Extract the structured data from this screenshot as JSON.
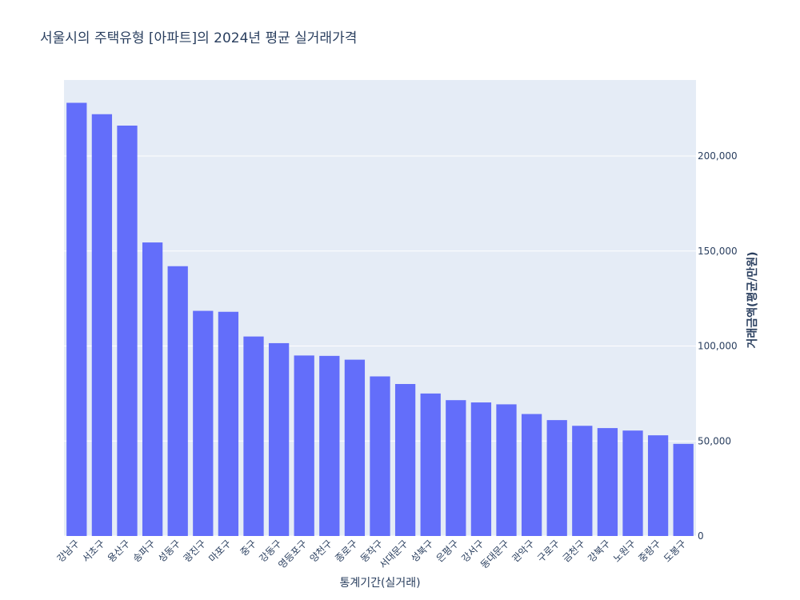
{
  "chart_data": {
    "type": "bar",
    "title": "서울시의 주택유형 [아파트]의 2024년 평균 실거래가격",
    "xlabel": "통계기간(실거래)",
    "ylabel": "거래금액(평균/만원)",
    "y_axis_side": "right",
    "ylim": [
      0,
      240000
    ],
    "yticks": [
      0,
      50000,
      100000,
      150000,
      200000
    ],
    "ytick_labels": [
      "0",
      "50,000",
      "100,000",
      "150,000",
      "200,000"
    ],
    "grid": true,
    "bar_color": "#636efa",
    "plot_bg": "#e5ecf6",
    "categories": [
      "강남구",
      "서초구",
      "용산구",
      "송파구",
      "성동구",
      "광진구",
      "마포구",
      "중구",
      "강동구",
      "영등포구",
      "양천구",
      "종로구",
      "동작구",
      "서대문구",
      "성북구",
      "은평구",
      "강서구",
      "동대문구",
      "관악구",
      "구로구",
      "금천구",
      "강북구",
      "노원구",
      "중랑구",
      "도봉구"
    ],
    "values": [
      228000,
      222000,
      216000,
      154500,
      142000,
      118500,
      118000,
      105000,
      101500,
      95000,
      94800,
      92800,
      84000,
      80000,
      75000,
      71500,
      70300,
      69300,
      64200,
      61000,
      58000,
      56800,
      55500,
      53000,
      48500
    ]
  }
}
